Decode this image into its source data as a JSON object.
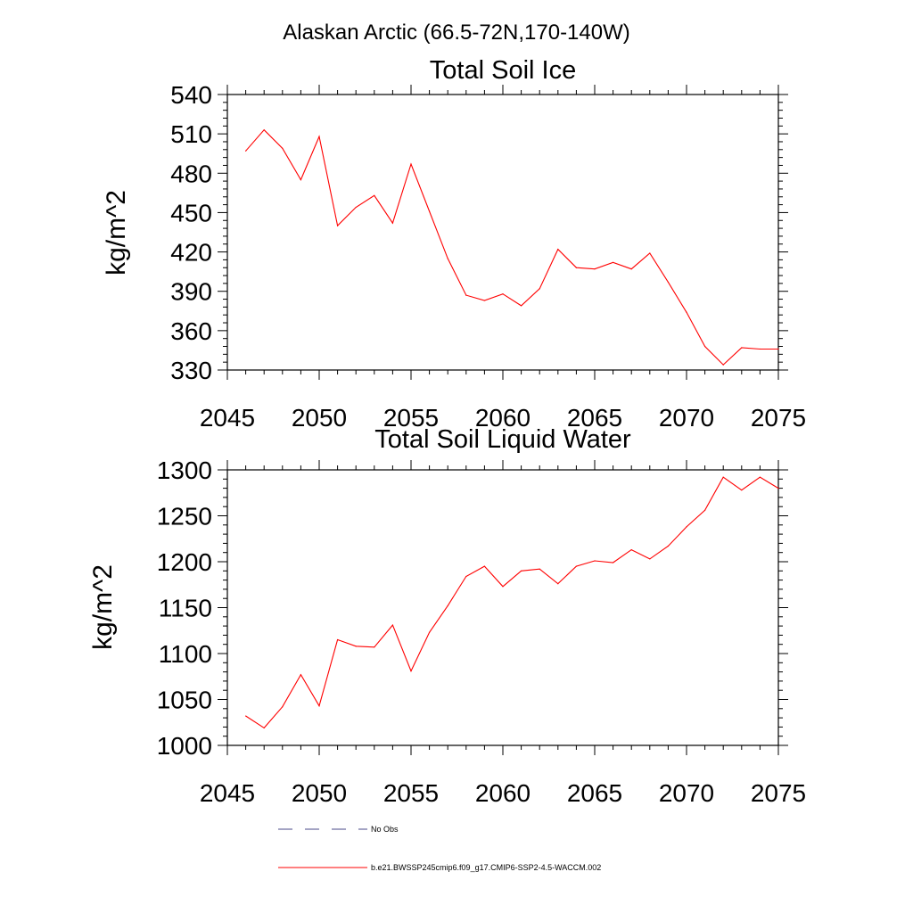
{
  "figure": {
    "title": "Alaskan Arctic (66.5-72N,170-140W)"
  },
  "chart_data": [
    {
      "type": "line",
      "title": "Total Soil Ice",
      "xlabel": "",
      "ylabel": "kg/m^2",
      "xlim": [
        2045,
        2075
      ],
      "ylim": [
        330,
        540
      ],
      "xticks": [
        2045,
        2050,
        2055,
        2060,
        2065,
        2070,
        2075
      ],
      "yticks": [
        330,
        360,
        390,
        420,
        450,
        480,
        510,
        540
      ],
      "grid": false,
      "series": [
        {
          "name": "b.e21.BWSSP245cmip6.f09_g17.CMIP6-SSP2-4.5-WACCM.002",
          "color": "#ff0000",
          "x": [
            2046,
            2047,
            2048,
            2049,
            2050,
            2051,
            2052,
            2053,
            2054,
            2055,
            2056,
            2057,
            2058,
            2059,
            2060,
            2061,
            2062,
            2063,
            2064,
            2065,
            2066,
            2067,
            2068,
            2069,
            2070,
            2071,
            2072,
            2073,
            2074,
            2075
          ],
          "y": [
            497,
            513,
            499,
            475,
            508,
            440,
            454,
            463,
            442,
            487,
            451,
            415,
            387,
            383,
            388,
            379,
            392,
            422,
            408,
            407,
            412,
            407,
            419,
            397,
            374,
            348,
            334,
            347,
            346,
            346
          ]
        }
      ]
    },
    {
      "type": "line",
      "title": "Total Soil Liquid Water",
      "xlabel": "",
      "ylabel": "kg/m^2",
      "xlim": [
        2045,
        2075
      ],
      "ylim": [
        1000,
        1300
      ],
      "xticks": [
        2045,
        2050,
        2055,
        2060,
        2065,
        2070,
        2075
      ],
      "yticks": [
        1000,
        1050,
        1100,
        1150,
        1200,
        1250,
        1300
      ],
      "grid": false,
      "series": [
        {
          "name": "b.e21.BWSSP245cmip6.f09_g17.CMIP6-SSP2-4.5-WACCM.002",
          "color": "#ff0000",
          "x": [
            2046,
            2047,
            2048,
            2049,
            2050,
            2051,
            2052,
            2053,
            2054,
            2055,
            2056,
            2057,
            2058,
            2059,
            2060,
            2061,
            2062,
            2063,
            2064,
            2065,
            2066,
            2067,
            2068,
            2069,
            2070,
            2071,
            2072,
            2073,
            2074,
            2075
          ],
          "y": [
            1032,
            1019,
            1042,
            1077,
            1043,
            1115,
            1108,
            1107,
            1131,
            1081,
            1123,
            1152,
            1184,
            1195,
            1173,
            1190,
            1192,
            1176,
            1195,
            1201,
            1199,
            1213,
            1203,
            1217,
            1238,
            1256,
            1292,
            1278,
            1292,
            1280
          ]
        }
      ]
    }
  ],
  "legend": {
    "placement": "bottom",
    "items": [
      {
        "label": "No Obs",
        "color": "#4a4a8a",
        "style": "dashed"
      },
      {
        "label": "b.e21.BWSSP245cmip6.f09_g17.CMIP6-SSP2-4.5-WACCM.002",
        "color": "#ff0000",
        "style": "solid"
      }
    ]
  }
}
